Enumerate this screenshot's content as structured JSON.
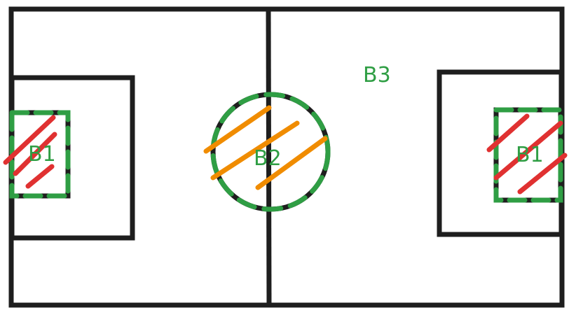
{
  "colors": {
    "outline": "#1e1e1e",
    "zone_border": "#2f9e44",
    "hatch_b1": "#e03131",
    "hatch_b2": "#f08c00",
    "label": "#2f9e44",
    "background": "#ffffff"
  },
  "labels": {
    "b1_left": "B1",
    "b2_center": "B2",
    "b3_field": "B3",
    "b1_right": "B1"
  }
}
